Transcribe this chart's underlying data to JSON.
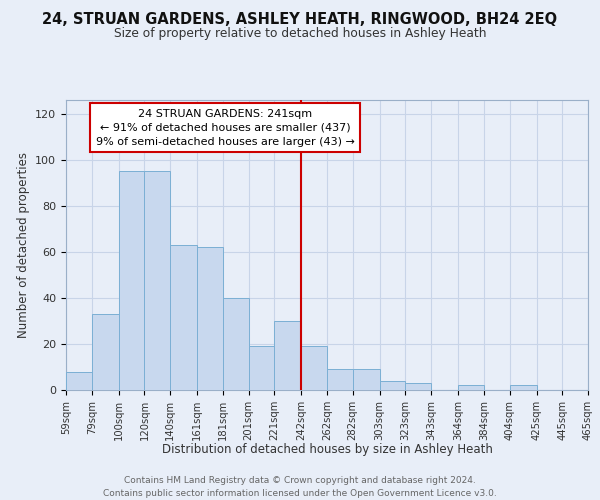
{
  "title": "24, STRUAN GARDENS, ASHLEY HEATH, RINGWOOD, BH24 2EQ",
  "subtitle": "Size of property relative to detached houses in Ashley Heath",
  "xlabel": "Distribution of detached houses by size in Ashley Heath",
  "ylabel": "Number of detached properties",
  "footnote1": "Contains HM Land Registry data © Crown copyright and database right 2024.",
  "footnote2": "Contains public sector information licensed under the Open Government Licence v3.0.",
  "bar_edges": [
    59,
    79,
    100,
    120,
    140,
    161,
    181,
    201,
    221,
    242,
    262,
    282,
    303,
    323,
    343,
    364,
    384,
    404,
    425,
    445,
    465
  ],
  "bar_heights": [
    8,
    33,
    95,
    95,
    63,
    62,
    40,
    19,
    30,
    19,
    9,
    9,
    4,
    3,
    0,
    2,
    0,
    2,
    0,
    0
  ],
  "bar_color": "#c8d8ee",
  "bar_edgecolor": "#7bafd4",
  "grid_color": "#c8d4e8",
  "vline_x": 242,
  "vline_color": "#cc0000",
  "annotation_line1": "24 STRUAN GARDENS: 241sqm",
  "annotation_line2": "← 91% of detached houses are smaller (437)",
  "annotation_line3": "9% of semi-detached houses are larger (43) →",
  "annotation_edgecolor": "#cc0000",
  "xlim": [
    59,
    465
  ],
  "ylim": [
    0,
    126
  ],
  "xtick_labels": [
    "59sqm",
    "79sqm",
    "100sqm",
    "120sqm",
    "140sqm",
    "161sqm",
    "181sqm",
    "201sqm",
    "221sqm",
    "242sqm",
    "262sqm",
    "282sqm",
    "303sqm",
    "323sqm",
    "343sqm",
    "364sqm",
    "384sqm",
    "404sqm",
    "425sqm",
    "445sqm",
    "465sqm"
  ],
  "xtick_positions": [
    59,
    79,
    100,
    120,
    140,
    161,
    181,
    201,
    221,
    242,
    262,
    282,
    303,
    323,
    343,
    364,
    384,
    404,
    425,
    445,
    465
  ],
  "ytick_positions": [
    0,
    20,
    40,
    60,
    80,
    100,
    120
  ],
  "background_color": "#e8eef8"
}
